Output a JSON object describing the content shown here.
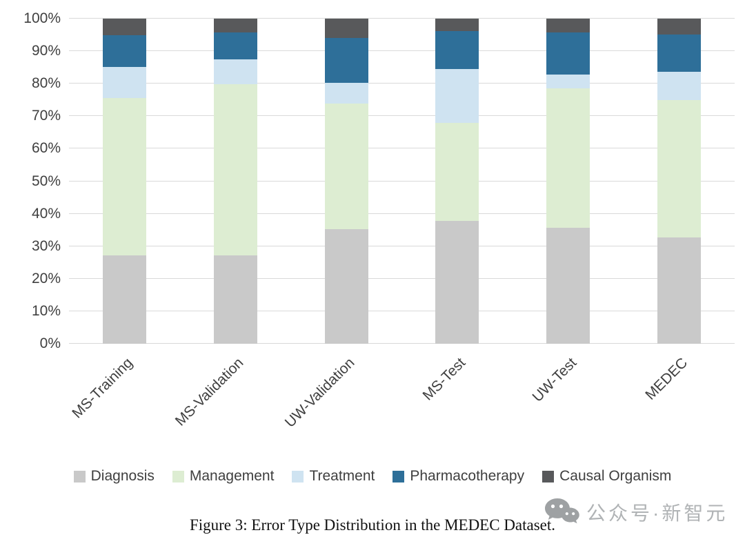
{
  "chart_data": {
    "type": "bar",
    "stacked": true,
    "orientation": "vertical",
    "categories": [
      "MS-Training",
      "MS-Validation",
      "UW-Validation",
      "MS-Test",
      "UW-Test",
      "MEDEC"
    ],
    "series": [
      {
        "name": "Diagnosis",
        "color": "#c9c9c9",
        "values": [
          27.2,
          27.2,
          35.2,
          37.7,
          35.7,
          32.8
        ]
      },
      {
        "name": "Management",
        "color": "#ddedd2",
        "values": [
          48.3,
          52.6,
          38.6,
          30.3,
          42.9,
          42.1
        ]
      },
      {
        "name": "Treatment",
        "color": "#cfe3f1",
        "values": [
          9.7,
          7.7,
          6.4,
          16.5,
          4.3,
          8.8
        ]
      },
      {
        "name": "Pharmacotherapy",
        "color": "#2e6f99",
        "values": [
          9.8,
          8.3,
          13.8,
          11.7,
          12.8,
          11.5
        ]
      },
      {
        "name": "Causal Organism",
        "color": "#58595b",
        "values": [
          5.0,
          4.2,
          6.0,
          3.8,
          4.3,
          4.8
        ]
      }
    ],
    "yticks": [
      "0%",
      "10%",
      "20%",
      "30%",
      "40%",
      "50%",
      "60%",
      "70%",
      "80%",
      "90%",
      "100%"
    ],
    "ylim": [
      0,
      100
    ],
    "grid": true,
    "legend_position": "bottom",
    "title": ""
  },
  "caption": "Figure 3: Error Type Distribution in the MEDEC Dataset.",
  "watermark": {
    "icon": "wechat-icon",
    "text": "公众号·新智元"
  },
  "colors": {
    "gridline": "#d9d9d9",
    "tick_text": "#3f3f3f",
    "caption_text": "#111111",
    "watermark": "#b0b3b5"
  }
}
